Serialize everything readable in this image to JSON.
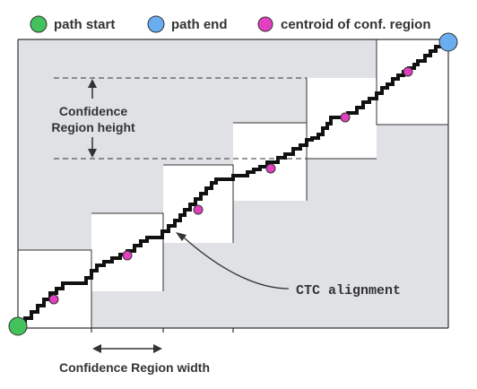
{
  "legend": {
    "start_label": "path start",
    "end_label": "path end",
    "centroid_label": "centroid of conf. region"
  },
  "annotations": {
    "region_height_line1": "Confidence",
    "region_height_line2": "Region height",
    "region_width": "Confidence Region width",
    "alignment": "CTC alignment"
  },
  "colors": {
    "start": "#43c15a",
    "end": "#6aaef0",
    "centroid": "#e23fc1",
    "band": "#dfe1e5",
    "path": "#111111"
  }
}
